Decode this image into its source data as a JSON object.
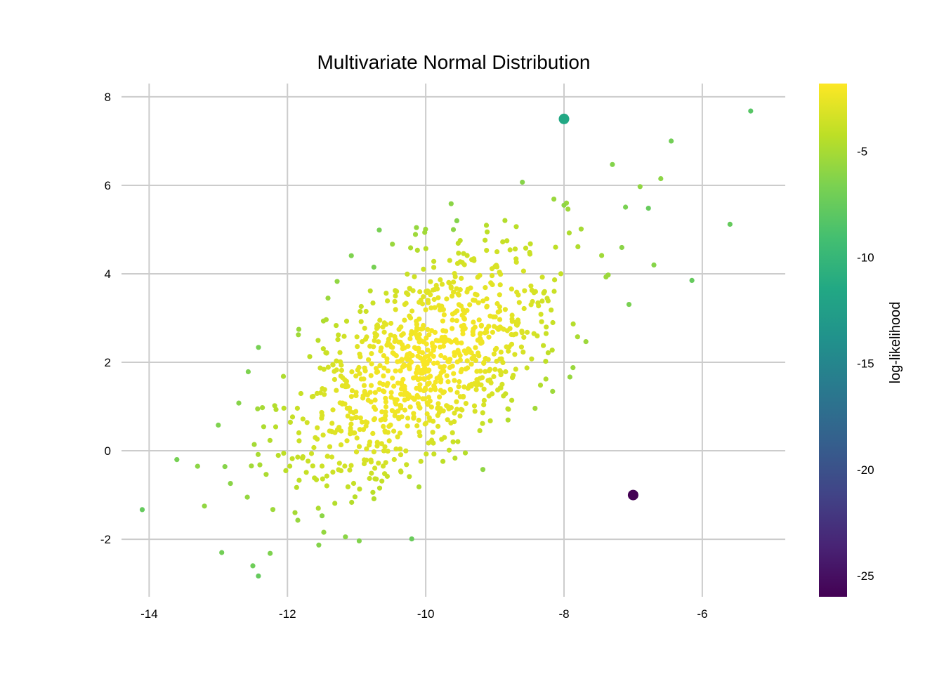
{
  "chart_data": {
    "type": "scatter",
    "title": "Multivariate Normal Distribution",
    "xlabel": "",
    "ylabel": "",
    "xlim": [
      -14.4,
      -4.8
    ],
    "ylim": [
      -3.3,
      8.3
    ],
    "x_ticks": [
      -14,
      -12,
      -10,
      -8,
      -6
    ],
    "x_tick_labels": [
      "-14",
      "-12",
      "-10",
      "-8",
      "-6"
    ],
    "y_ticks": [
      -2,
      0,
      2,
      4,
      6,
      8
    ],
    "y_tick_labels": [
      "-2",
      "0",
      "2",
      "4",
      "6",
      "8"
    ],
    "grid": true,
    "colormap": "viridis",
    "colorbar": {
      "label": "log-likelihood",
      "range": [
        -26,
        -1.8
      ],
      "ticks": [
        -5,
        -10,
        -15,
        -20,
        -25
      ],
      "tick_labels": [
        "-5",
        "-10",
        "-15",
        "-20",
        "-25"
      ],
      "placement": "right"
    },
    "distribution": {
      "mean": [
        -10,
        2
      ],
      "cov": [
        [
          1,
          0.8
        ],
        [
          0.8,
          2
        ]
      ],
      "n_points": 1000
    },
    "points_sample": [
      {
        "x": -14.1,
        "y": -1.33,
        "ll": -7.6
      },
      {
        "x": -13.6,
        "y": -0.2,
        "ll": -6.8
      },
      {
        "x": -13.3,
        "y": -0.35,
        "ll": -6.0
      },
      {
        "x": -13.2,
        "y": -1.25,
        "ll": -5.8
      },
      {
        "x": -13.0,
        "y": 0.58,
        "ll": -6.5
      },
      {
        "x": -12.95,
        "y": -2.3,
        "ll": -7.0
      },
      {
        "x": -12.5,
        "y": -2.6,
        "ll": -7.2
      },
      {
        "x": -12.42,
        "y": -2.83,
        "ll": -7.6
      },
      {
        "x": -12.25,
        "y": -2.32,
        "ll": -6.5
      },
      {
        "x": -11.85,
        "y": -1.57,
        "ll": -5.6
      },
      {
        "x": -11.5,
        "y": -1.47,
        "ll": -6.0
      },
      {
        "x": -10.75,
        "y": 4.15,
        "ll": -6.8
      },
      {
        "x": -9.55,
        "y": 5.2,
        "ll": -6.3
      },
      {
        "x": -9.6,
        "y": 5.0,
        "ll": -6.0
      },
      {
        "x": -8.0,
        "y": 5.55,
        "ll": -5.9
      },
      {
        "x": -7.3,
        "y": 6.47,
        "ll": -6.3
      },
      {
        "x": -6.9,
        "y": 5.97,
        "ll": -5.8
      },
      {
        "x": -6.6,
        "y": 6.15,
        "ll": -6.0
      },
      {
        "x": -6.45,
        "y": 7.0,
        "ll": -7.0
      },
      {
        "x": -6.7,
        "y": 4.2,
        "ll": -6.2
      },
      {
        "x": -6.15,
        "y": 3.85,
        "ll": -7.6
      },
      {
        "x": -5.6,
        "y": 5.12,
        "ll": -7.6
      },
      {
        "x": -5.3,
        "y": 7.68,
        "ll": -8.2
      },
      {
        "x": -8.0,
        "y": 7.5,
        "ll": -11.5,
        "outlier": true
      },
      {
        "x": -7.0,
        "y": -1.0,
        "ll": -26.0,
        "outlier": true
      }
    ]
  }
}
